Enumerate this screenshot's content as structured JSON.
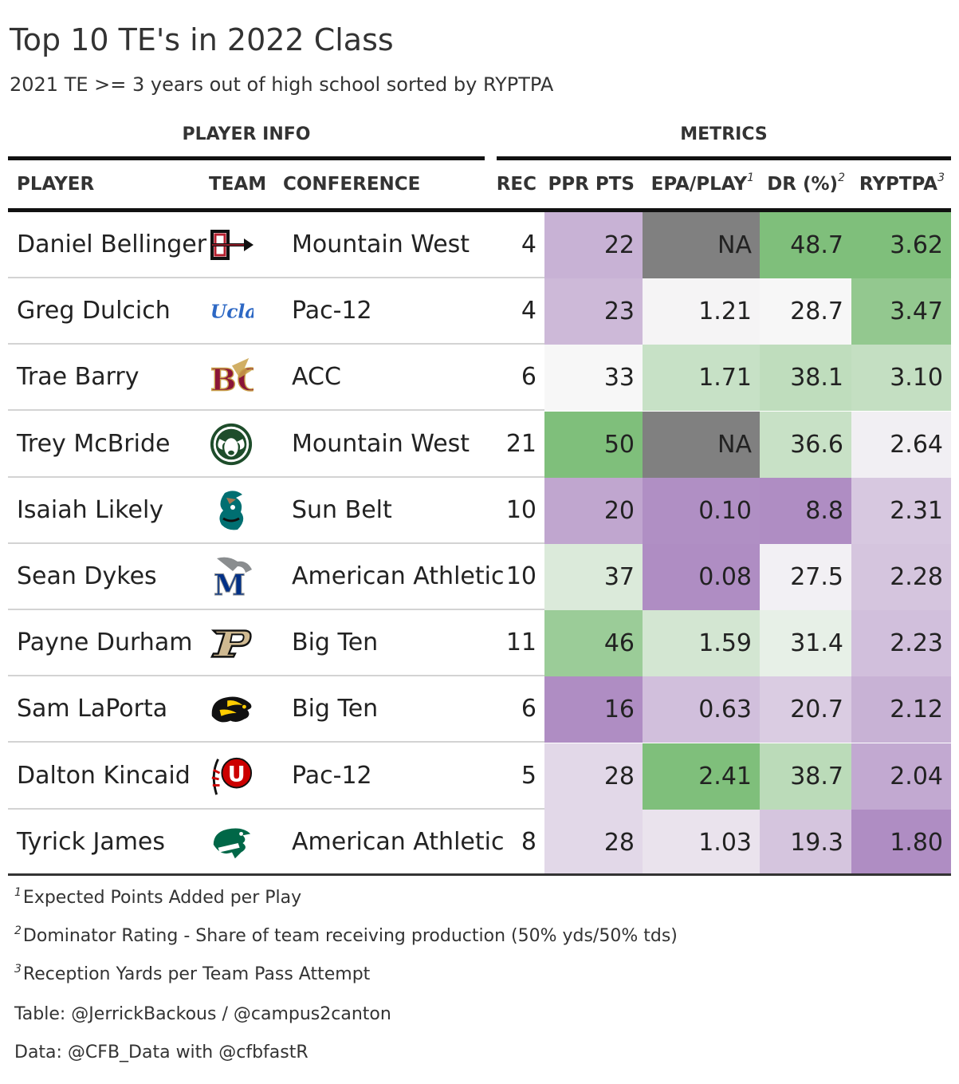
{
  "title": "Top 10 TE's in 2022 Class",
  "subtitle": "2021 TE >= 3 years out of high school sorted by RYPTPA",
  "spanners": {
    "player_info": "PLAYER INFO",
    "metrics": "METRICS"
  },
  "columns": {
    "player": "PLAYER",
    "team": "TEAM",
    "conference": "CONFERENCE",
    "rec": "REC",
    "ppr": "PPR PTS",
    "epa": "EPA/PLAY",
    "epa_mark": "1",
    "dr": "DR (%)",
    "dr_mark": "2",
    "ryptpa": "RYPTPA",
    "ryptpa_mark": "3"
  },
  "colors": {
    "na_fill": "#808080",
    "high": "#7fbf7b",
    "mid": "#f7f7f7",
    "low": "#af8dc3"
  },
  "chart_data": {
    "type": "table",
    "rows": [
      {
        "player": "Daniel Bellinger",
        "team_icon": "san-diego-state-logo-icon",
        "conference": "Mountain West",
        "rec": "4",
        "ppr": "22",
        "epa": "NA",
        "dr": "48.7",
        "ryptpa": "3.62"
      },
      {
        "player": "Greg Dulcich",
        "team_icon": "ucla-logo-icon",
        "conference": "Pac-12",
        "rec": "4",
        "ppr": "23",
        "epa": "1.21",
        "dr": "28.7",
        "ryptpa": "3.47"
      },
      {
        "player": "Trae Barry",
        "team_icon": "boston-college-logo-icon",
        "conference": "ACC",
        "rec": "6",
        "ppr": "33",
        "epa": "1.71",
        "dr": "38.1",
        "ryptpa": "3.10"
      },
      {
        "player": "Trey McBride",
        "team_icon": "colorado-state-logo-icon",
        "conference": "Mountain West",
        "rec": "21",
        "ppr": "50",
        "epa": "NA",
        "dr": "36.6",
        "ryptpa": "2.64"
      },
      {
        "player": "Isaiah Likely",
        "team_icon": "coastal-carolina-logo-icon",
        "conference": "Sun Belt",
        "rec": "10",
        "ppr": "20",
        "epa": "0.10",
        "dr": "8.8",
        "ryptpa": "2.31"
      },
      {
        "player": "Sean Dykes",
        "team_icon": "memphis-logo-icon",
        "conference": "American Athletic",
        "rec": "10",
        "ppr": "37",
        "epa": "0.08",
        "dr": "27.5",
        "ryptpa": "2.28"
      },
      {
        "player": "Payne Durham",
        "team_icon": "purdue-logo-icon",
        "conference": "Big Ten",
        "rec": "11",
        "ppr": "46",
        "epa": "1.59",
        "dr": "31.4",
        "ryptpa": "2.23"
      },
      {
        "player": "Sam LaPorta",
        "team_icon": "iowa-logo-icon",
        "conference": "Big Ten",
        "rec": "6",
        "ppr": "16",
        "epa": "0.63",
        "dr": "20.7",
        "ryptpa": "2.12"
      },
      {
        "player": "Dalton Kincaid",
        "team_icon": "utah-logo-icon",
        "conference": "Pac-12",
        "rec": "5",
        "ppr": "28",
        "epa": "2.41",
        "dr": "38.7",
        "ryptpa": "2.04"
      },
      {
        "player": "Tyrick James",
        "team_icon": "tulane-logo-icon",
        "conference": "American Athletic",
        "rec": "8",
        "ppr": "28",
        "epa": "1.03",
        "dr": "19.3",
        "ryptpa": "1.80"
      }
    ]
  },
  "logos": {
    "ucla": "Ucla",
    "bc": "BC",
    "utah": "U",
    "purdue": "P",
    "memphis": "M"
  },
  "footnotes": [
    {
      "mark": "1",
      "text": "Expected Points Added per Play"
    },
    {
      "mark": "2",
      "text": "Dominator Rating - Share of team receiving production (50% yds/50% tds)"
    },
    {
      "mark": "3",
      "text": "Reception Yards per Team Pass Attempt"
    }
  ],
  "credits": {
    "table": "Table: @JerrickBackous / @campus2canton",
    "data": "Data: @CFB_Data with @cfbfastR"
  }
}
